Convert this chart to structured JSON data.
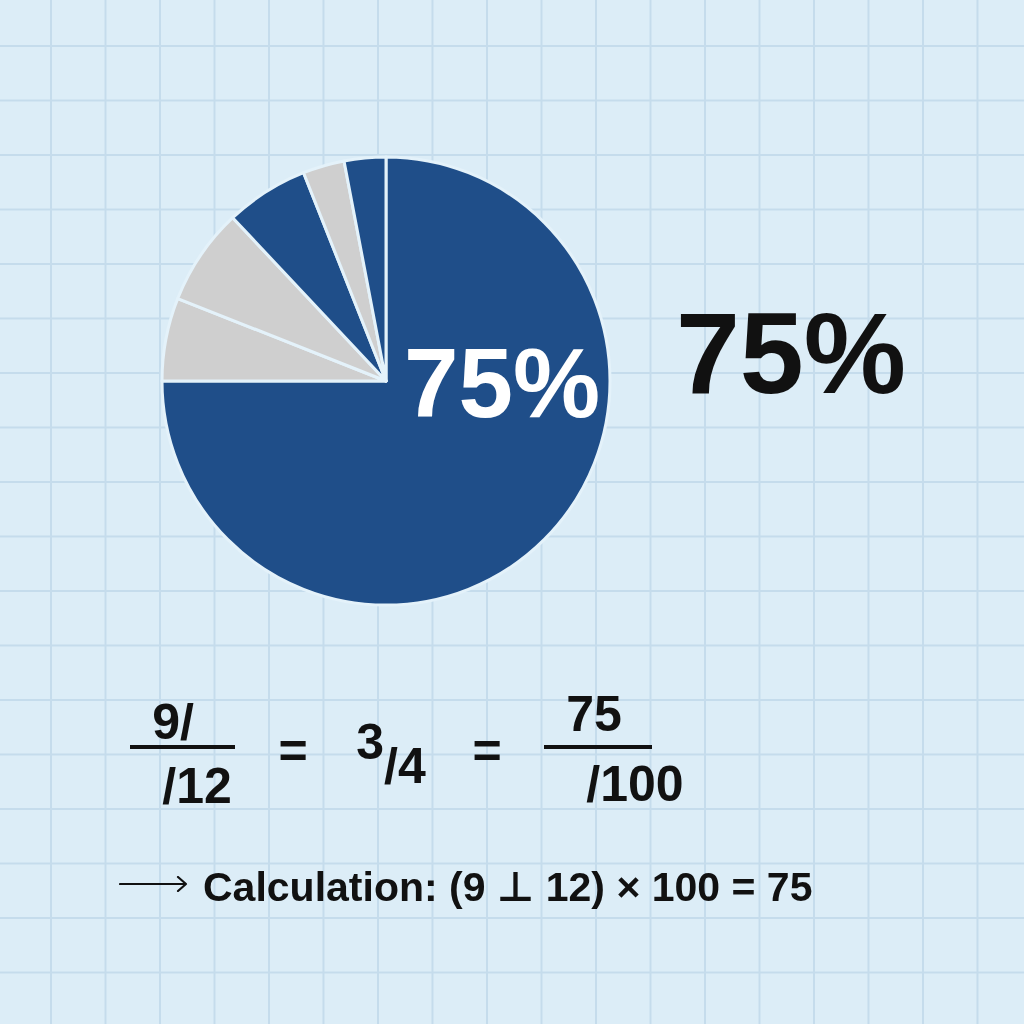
{
  "chart_data": {
    "type": "pie",
    "categories": [
      null,
      null,
      null,
      null,
      null,
      null
    ],
    "values": [
      75,
      6,
      7,
      6,
      3,
      3
    ],
    "colors": [
      "#1f4e89",
      "#cfcfcf",
      "#cfcfcf",
      "#1f4e89",
      "#cfcfcf",
      "#1f4e89"
    ],
    "value_labels": [
      "75%",
      null,
      null,
      null,
      null,
      null
    ],
    "annotations": [
      "75%",
      "9/",
      "/12",
      "=",
      "$^{3}$/4",
      "=",
      "75",
      "/100",
      "Calculation: (9 ⊥ 12) × 100 = 75"
    ]
  }
}
